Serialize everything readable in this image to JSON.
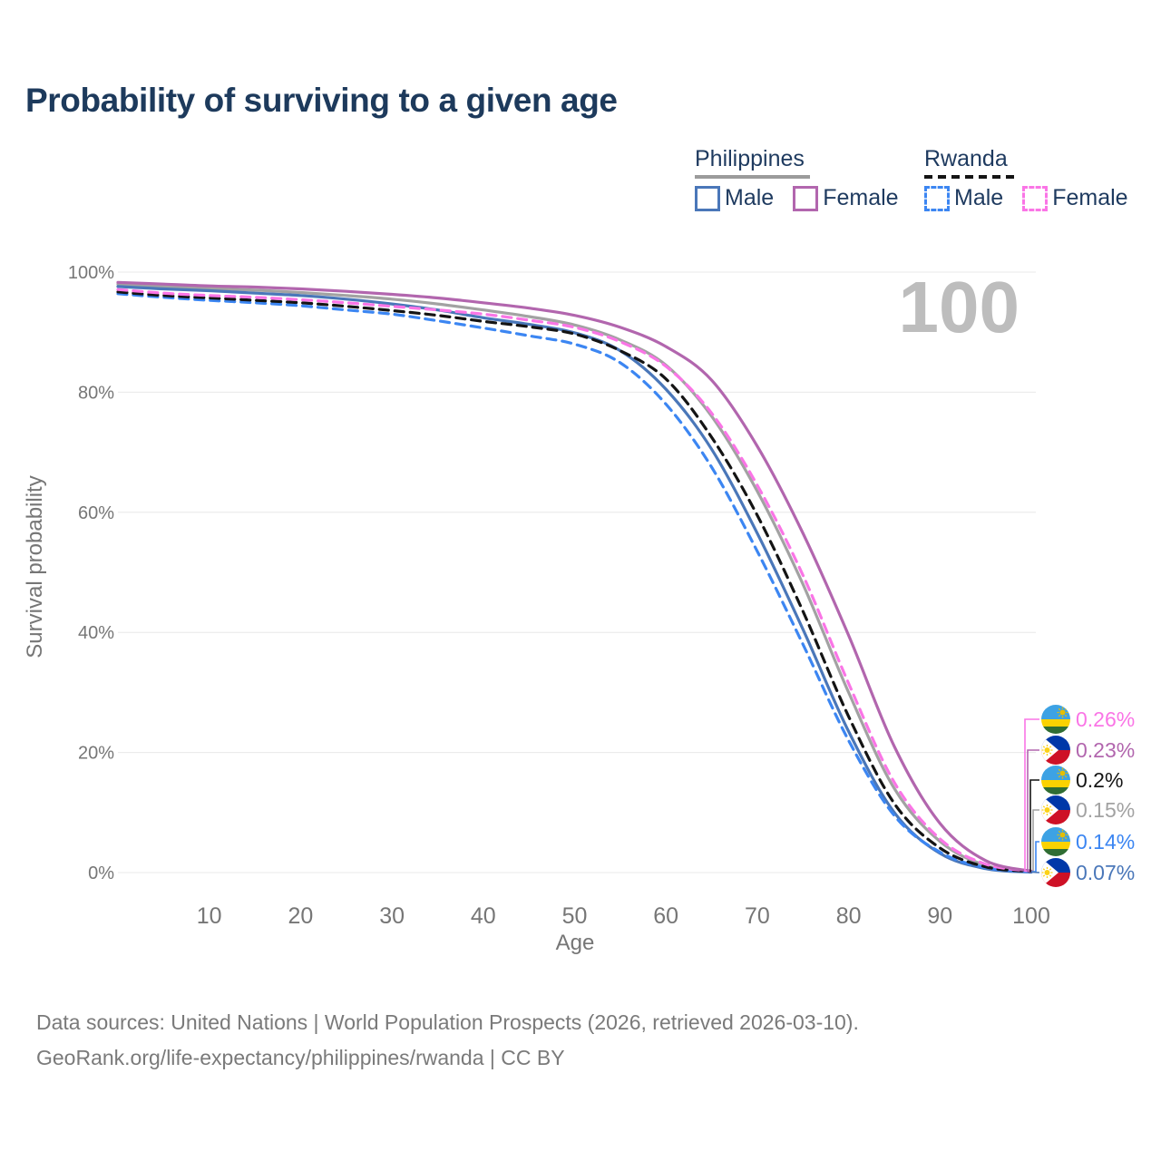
{
  "title": "Probability of surviving to a given age",
  "legend": {
    "groups": [
      {
        "name": "Philippines",
        "line_style": "solid",
        "line_color": "#9b9b9b",
        "items": [
          {
            "label": "Male",
            "color": "#4a77b9",
            "box_style": "solid"
          },
          {
            "label": "Female",
            "color": "#b266ae",
            "box_style": "solid"
          }
        ]
      },
      {
        "name": "Rwanda",
        "line_style": "dashed",
        "line_color": "#141414",
        "items": [
          {
            "label": "Male",
            "color": "#3c86f2",
            "box_style": "dashed"
          },
          {
            "label": "Female",
            "color": "#fa75e6",
            "box_style": "dashed"
          }
        ]
      }
    ]
  },
  "chart_data": {
    "type": "line",
    "title": "Probability of surviving to a given age",
    "xlabel": "Age",
    "ylabel": "Survival probability",
    "xlim": [
      0,
      100
    ],
    "ylim": [
      0,
      100
    ],
    "grid": "horizontal",
    "legend_position": "top-right",
    "age_cursor": "100",
    "x_ticks": [
      {
        "v": 10,
        "label": "10"
      },
      {
        "v": 20,
        "label": "20"
      },
      {
        "v": 30,
        "label": "30"
      },
      {
        "v": 40,
        "label": "40"
      },
      {
        "v": 50,
        "label": "50"
      },
      {
        "v": 60,
        "label": "60"
      },
      {
        "v": 70,
        "label": "70"
      },
      {
        "v": 80,
        "label": "80"
      },
      {
        "v": 90,
        "label": "90"
      },
      {
        "v": 100,
        "label": "100"
      }
    ],
    "y_ticks": [
      {
        "v": 0,
        "label": "0%"
      },
      {
        "v": 20,
        "label": "20%"
      },
      {
        "v": 40,
        "label": "40%"
      },
      {
        "v": 60,
        "label": "60%"
      },
      {
        "v": 80,
        "label": "80%"
      },
      {
        "v": 100,
        "label": "100%"
      }
    ],
    "x": [
      0,
      5,
      10,
      15,
      20,
      25,
      30,
      35,
      40,
      45,
      50,
      55,
      60,
      65,
      70,
      75,
      80,
      85,
      90,
      95,
      100
    ],
    "series": [
      {
        "name": "Rwanda Female",
        "country": "Rwanda",
        "sex": "Female",
        "flag": "rw",
        "color": "#fa75e6",
        "dashed": true,
        "end_label": "0.26%",
        "values": [
          97.1,
          96.5,
          96.1,
          95.8,
          95.4,
          94.9,
          94.3,
          93.7,
          93.0,
          92.0,
          90.8,
          88.4,
          84.3,
          76.5,
          64.5,
          49.5,
          31.5,
          15.0,
          5.6,
          1.4,
          0.26
        ]
      },
      {
        "name": "Philippines Female",
        "country": "Philippines",
        "sex": "Female",
        "flag": "ph",
        "color": "#b266ae",
        "dashed": false,
        "end_label": "0.23%",
        "values": [
          98.3,
          98.0,
          97.7,
          97.5,
          97.2,
          96.8,
          96.3,
          95.7,
          94.9,
          94.0,
          92.8,
          90.8,
          87.6,
          82.0,
          71.0,
          56.5,
          39.5,
          21.0,
          8.2,
          2.0,
          0.23
        ]
      },
      {
        "name": "Rwanda Both sexes",
        "country": "Rwanda",
        "sex": "Both",
        "flag": "rw",
        "color": "#141414",
        "dashed": true,
        "end_label": "0.2%",
        "values": [
          96.7,
          96.1,
          95.7,
          95.3,
          94.9,
          94.3,
          93.6,
          92.8,
          91.8,
          90.9,
          89.7,
          86.9,
          82.2,
          72.5,
          59.5,
          43.5,
          26.0,
          11.5,
          4.1,
          0.95,
          0.2
        ]
      },
      {
        "name": "Philippines Both sexes",
        "country": "Philippines",
        "sex": "Both",
        "flag": "ph",
        "color": "#a2a2a2",
        "dashed": false,
        "end_label": "0.15%",
        "values": [
          98.0,
          97.6,
          97.3,
          97.0,
          96.6,
          96.1,
          95.5,
          94.7,
          93.7,
          92.6,
          91.2,
          88.7,
          84.5,
          76.0,
          63.5,
          48.0,
          30.0,
          14.0,
          5.2,
          1.2,
          0.15
        ]
      },
      {
        "name": "Rwanda Male",
        "country": "Rwanda",
        "sex": "Male",
        "flag": "rw",
        "color": "#3c86f2",
        "dashed": true,
        "end_label": "0.14%",
        "values": [
          96.4,
          95.8,
          95.3,
          94.9,
          94.4,
          93.7,
          93.0,
          91.9,
          90.7,
          89.4,
          88.0,
          84.9,
          78.0,
          67.5,
          53.5,
          38.0,
          22.0,
          9.5,
          3.4,
          0.8,
          0.14
        ]
      },
      {
        "name": "Philippines Male",
        "country": "Philippines",
        "sex": "Male",
        "flag": "ph",
        "color": "#4a77b9",
        "dashed": false,
        "end_label": "0.07%",
        "values": [
          97.6,
          97.2,
          96.9,
          96.5,
          96.1,
          95.5,
          94.7,
          93.7,
          92.4,
          91.3,
          89.9,
          86.9,
          80.5,
          70.5,
          56.5,
          40.5,
          23.5,
          10.0,
          3.2,
          0.65,
          0.07
        ]
      }
    ],
    "flag_colors": {
      "ph": {
        "blue": "#0038a8",
        "red": "#ce1126",
        "white": "#ffffff",
        "sun": "#fcd116"
      },
      "rw": {
        "blue": "#3da2e4",
        "yellow": "#fad201",
        "green": "#2f6d33",
        "sun": "#e5be01"
      }
    }
  },
  "footer": {
    "line1": "Data sources: United Nations | World Population Prospects (2026, retrieved 2026-03-10).",
    "line2": "GeoRank.org/life-expectancy/philippines/rwanda | CC BY"
  }
}
